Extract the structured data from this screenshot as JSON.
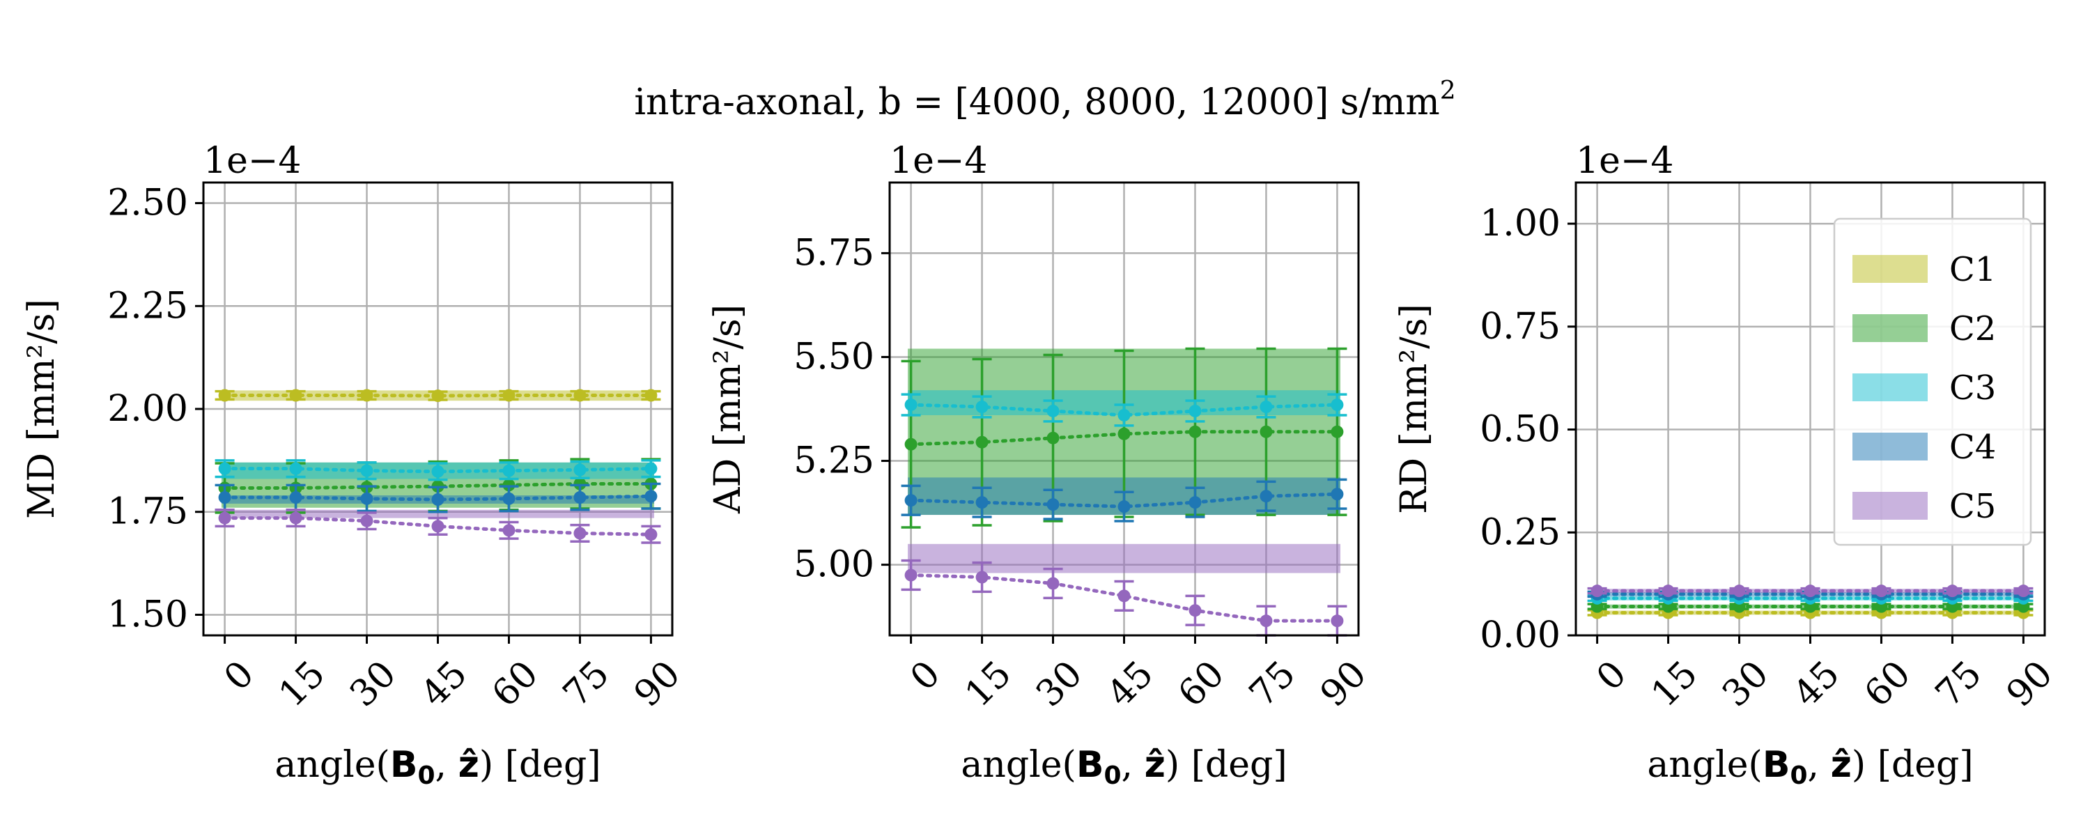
{
  "figure": {
    "title": "intra-axonal, b = [4000, 8000, 12000] s/mm",
    "title_superscript": "2"
  },
  "chart_data": [
    {
      "type": "line",
      "ylabel": "MD [mm²/s]",
      "xlabel_prefix": "angle(",
      "xlabel_b0": "B",
      "xlabel_b0_sub": "0",
      "xlabel_z": "ẑ",
      "xlabel_suffix": ") [deg]",
      "offset_text": "1e−4",
      "x": [
        0,
        15,
        30,
        45,
        60,
        75,
        90
      ],
      "xlim": [
        -4.5,
        94.5
      ],
      "ylim": [
        1.45,
        2.55
      ],
      "yticks": [
        1.5,
        1.75,
        2.0,
        2.25,
        2.5
      ],
      "ytick_labels": [
        "1.50",
        "1.75",
        "2.00",
        "2.25",
        "2.50"
      ],
      "grid": true,
      "series": [
        {
          "name": "C1",
          "color": "#bcbd22",
          "values": [
            2.033,
            2.033,
            2.033,
            2.032,
            2.033,
            2.033,
            2.033
          ],
          "err": [
            0.01,
            0.01,
            0.01,
            0.01,
            0.01,
            0.01,
            0.01
          ],
          "band": [
            2.02,
            2.045
          ]
        },
        {
          "name": "C2",
          "color": "#2ca02c",
          "values": [
            1.808,
            1.808,
            1.81,
            1.812,
            1.815,
            1.818,
            1.818
          ],
          "err": [
            0.06,
            0.06,
            0.06,
            0.06,
            0.06,
            0.06,
            0.06
          ],
          "band": [
            1.76,
            1.87
          ]
        },
        {
          "name": "C3",
          "color": "#17becf",
          "values": [
            1.855,
            1.855,
            1.85,
            1.848,
            1.85,
            1.852,
            1.855
          ],
          "err": [
            0.02,
            0.02,
            0.02,
            0.02,
            0.02,
            0.02,
            0.02
          ],
          "band": [
            1.83,
            1.87
          ]
        },
        {
          "name": "C4",
          "color": "#1f77b4",
          "values": [
            1.785,
            1.785,
            1.782,
            1.78,
            1.782,
            1.785,
            1.788
          ],
          "err": [
            0.03,
            0.03,
            0.03,
            0.03,
            0.03,
            0.03,
            0.03
          ],
          "band": [
            1.77,
            1.79
          ]
        },
        {
          "name": "C5",
          "color": "#9467bd",
          "values": [
            1.735,
            1.735,
            1.728,
            1.715,
            1.705,
            1.698,
            1.695
          ],
          "err": [
            0.02,
            0.02,
            0.02,
            0.02,
            0.02,
            0.02,
            0.02
          ],
          "band": [
            1.735,
            1.755
          ]
        }
      ]
    },
    {
      "type": "line",
      "ylabel": "AD [mm²/s]",
      "xlabel_prefix": "angle(",
      "xlabel_b0": "B",
      "xlabel_b0_sub": "0",
      "xlabel_z": "ẑ",
      "xlabel_suffix": ") [deg]",
      "offset_text": "1e−4",
      "x": [
        0,
        15,
        30,
        45,
        60,
        75,
        90
      ],
      "xlim": [
        -4.5,
        94.5
      ],
      "ylim": [
        4.83,
        5.92
      ],
      "yticks": [
        5.0,
        5.25,
        5.5,
        5.75
      ],
      "ytick_labels": [
        "5.00",
        "5.25",
        "5.50",
        "5.75"
      ],
      "grid": true,
      "series": [
        {
          "name": "C2",
          "color": "#2ca02c",
          "values": [
            5.29,
            5.295,
            5.305,
            5.315,
            5.32,
            5.32,
            5.32
          ],
          "err": [
            0.2,
            0.2,
            0.2,
            0.2,
            0.2,
            0.2,
            0.2
          ],
          "band": [
            5.12,
            5.52
          ]
        },
        {
          "name": "C3",
          "color": "#17becf",
          "values": [
            5.385,
            5.38,
            5.37,
            5.36,
            5.37,
            5.38,
            5.385
          ],
          "err": [
            0.025,
            0.025,
            0.025,
            0.025,
            0.025,
            0.025,
            0.025
          ],
          "band": [
            5.36,
            5.42
          ]
        },
        {
          "name": "C4",
          "color": "#1f77b4",
          "values": [
            5.155,
            5.15,
            5.145,
            5.14,
            5.15,
            5.165,
            5.17
          ],
          "err": [
            0.035,
            0.035,
            0.035,
            0.035,
            0.035,
            0.035,
            0.035
          ],
          "band": [
            5.12,
            5.21
          ]
        },
        {
          "name": "C5",
          "color": "#9467bd",
          "values": [
            4.975,
            4.97,
            4.955,
            4.925,
            4.89,
            4.865,
            4.865
          ],
          "err": [
            0.035,
            0.035,
            0.035,
            0.035,
            0.035,
            0.035,
            0.035
          ],
          "band": [
            4.98,
            5.05
          ]
        }
      ]
    },
    {
      "type": "line",
      "ylabel": "RD [mm²/s]",
      "xlabel_prefix": "angle(",
      "xlabel_b0": "B",
      "xlabel_b0_sub": "0",
      "xlabel_z": "ẑ",
      "xlabel_suffix": ") [deg]",
      "offset_text": "1e−4",
      "x": [
        0,
        15,
        30,
        45,
        60,
        75,
        90
      ],
      "xlim": [
        -4.5,
        94.5
      ],
      "ylim": [
        0.0,
        1.1
      ],
      "yticks": [
        0.0,
        0.25,
        0.5,
        0.75,
        1.0
      ],
      "ytick_labels": [
        "0.00",
        "0.25",
        "0.50",
        "0.75",
        "1.00"
      ],
      "grid": true,
      "legend_position": "upper right",
      "series": [
        {
          "name": "C1",
          "color": "#bcbd22",
          "values": [
            0.055,
            0.055,
            0.055,
            0.055,
            0.055,
            0.055,
            0.055
          ],
          "err": [
            0.006,
            0.006,
            0.006,
            0.006,
            0.006,
            0.006,
            0.006
          ],
          "band": [
            0.05,
            0.06
          ]
        },
        {
          "name": "C2",
          "color": "#2ca02c",
          "values": [
            0.07,
            0.07,
            0.07,
            0.07,
            0.07,
            0.07,
            0.07
          ],
          "err": [
            0.006,
            0.006,
            0.006,
            0.006,
            0.006,
            0.006,
            0.006
          ],
          "band": [
            0.065,
            0.075
          ]
        },
        {
          "name": "C3",
          "color": "#17becf",
          "values": [
            0.09,
            0.09,
            0.09,
            0.09,
            0.09,
            0.09,
            0.09
          ],
          "err": [
            0.006,
            0.006,
            0.006,
            0.006,
            0.006,
            0.006,
            0.006
          ],
          "band": [
            0.085,
            0.095
          ]
        },
        {
          "name": "C4",
          "color": "#1f77b4",
          "values": [
            0.1,
            0.1,
            0.1,
            0.1,
            0.1,
            0.1,
            0.1
          ],
          "err": [
            0.006,
            0.006,
            0.006,
            0.006,
            0.006,
            0.006,
            0.006
          ],
          "band": [
            0.095,
            0.105
          ]
        },
        {
          "name": "C5",
          "color": "#9467bd",
          "values": [
            0.108,
            0.108,
            0.108,
            0.108,
            0.108,
            0.108,
            0.108
          ],
          "err": [
            0.006,
            0.006,
            0.006,
            0.006,
            0.006,
            0.006,
            0.006
          ],
          "band": [
            0.103,
            0.113
          ]
        }
      ],
      "legend": [
        {
          "label": "C1",
          "color": "#bcbd22"
        },
        {
          "label": "C2",
          "color": "#2ca02c"
        },
        {
          "label": "C3",
          "color": "#17becf"
        },
        {
          "label": "C4",
          "color": "#1f77b4"
        },
        {
          "label": "C5",
          "color": "#9467bd"
        }
      ]
    }
  ]
}
